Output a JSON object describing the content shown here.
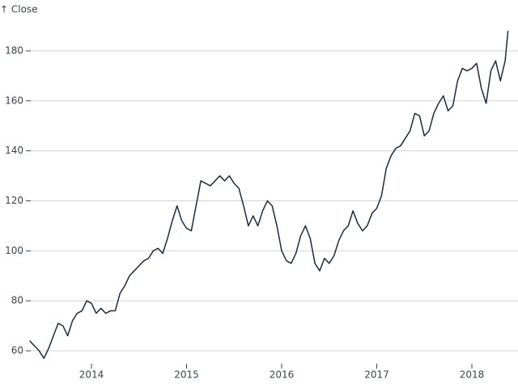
{
  "chart_data": {
    "type": "line",
    "y_label": "↑ Close",
    "x": [
      2013.35,
      2013.4,
      2013.45,
      2013.5,
      2013.55,
      2013.6,
      2013.65,
      2013.7,
      2013.75,
      2013.8,
      2013.85,
      2013.9,
      2013.95,
      2014.0,
      2014.05,
      2014.1,
      2014.15,
      2014.2,
      2014.25,
      2014.3,
      2014.35,
      2014.4,
      2014.45,
      2014.5,
      2014.55,
      2014.6,
      2014.65,
      2014.7,
      2014.75,
      2014.8,
      2014.85,
      2014.9,
      2014.95,
      2015.0,
      2015.05,
      2015.1,
      2015.15,
      2015.2,
      2015.25,
      2015.3,
      2015.35,
      2015.4,
      2015.45,
      2015.5,
      2015.55,
      2015.6,
      2015.65,
      2015.7,
      2015.75,
      2015.8,
      2015.85,
      2015.9,
      2015.95,
      2016.0,
      2016.05,
      2016.1,
      2016.15,
      2016.2,
      2016.25,
      2016.3,
      2016.35,
      2016.4,
      2016.45,
      2016.5,
      2016.55,
      2016.6,
      2016.65,
      2016.7,
      2016.75,
      2016.8,
      2016.85,
      2016.9,
      2016.95,
      2017.0,
      2017.05,
      2017.1,
      2017.15,
      2017.2,
      2017.25,
      2017.3,
      2017.35,
      2017.4,
      2017.45,
      2017.5,
      2017.55,
      2017.6,
      2017.65,
      2017.7,
      2017.75,
      2017.8,
      2017.85,
      2017.9,
      2017.95,
      2018.0,
      2018.05,
      2018.1,
      2018.15,
      2018.2,
      2018.25,
      2018.3,
      2018.35,
      2018.38
    ],
    "series": [
      {
        "name": "Close",
        "color": "#1d2b3e",
        "values": [
          64,
          62,
          60,
          57,
          61,
          66,
          71,
          70,
          66,
          72,
          75,
          76,
          80,
          79,
          75,
          77,
          75,
          76,
          76,
          83,
          86,
          90,
          92,
          94,
          96,
          97,
          100,
          101,
          99,
          105,
          112,
          118,
          112,
          109,
          108,
          118,
          128,
          127,
          126,
          128,
          130,
          128,
          130,
          127,
          125,
          118,
          110,
          114,
          110,
          116,
          120,
          118,
          110,
          100,
          96,
          95,
          99,
          106,
          110,
          105,
          95,
          92,
          97,
          95,
          98,
          104,
          108,
          110,
          116,
          111,
          108,
          110,
          115,
          117,
          122,
          133,
          138,
          141,
          142,
          145,
          148,
          155,
          154,
          146,
          148,
          155,
          159,
          162,
          156,
          158,
          168,
          173,
          172,
          173,
          175,
          165,
          159,
          172,
          176,
          168,
          176,
          188
        ]
      }
    ],
    "xlim": [
      2013.3,
      2018.4
    ],
    "xticks": [
      2014,
      2015,
      2016,
      2017,
      2018
    ],
    "ylim": [
      55,
      190
    ],
    "yticks": [
      60,
      80,
      100,
      120,
      140,
      160,
      180
    ],
    "grid": true
  }
}
